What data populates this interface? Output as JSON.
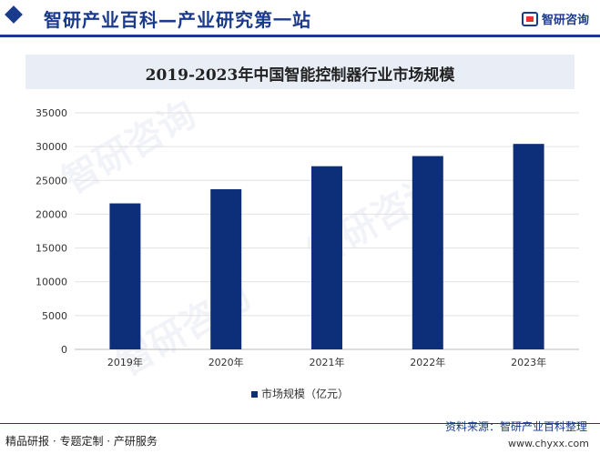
{
  "header": {
    "title": "智研产业百科—产业研究第一站",
    "brand": "智研咨询"
  },
  "chart_data": {
    "type": "bar",
    "title": "2019-2023年中国智能控制器行业市场规模",
    "categories": [
      "2019年",
      "2020年",
      "2021年",
      "2022年",
      "2023年"
    ],
    "series": [
      {
        "name": "市场规模（亿元）",
        "values": [
          21600,
          23700,
          27100,
          28600,
          30400
        ],
        "color": "#0d2f7a"
      }
    ],
    "yticks": [
      "0",
      "5000",
      "10000",
      "15000",
      "20000",
      "25000",
      "30000",
      "35000"
    ],
    "ylim": [
      0,
      35000
    ],
    "grid": true,
    "legend_position": "bottom"
  },
  "footer": {
    "left": "精品研报 · 专题定制 · 产研服务",
    "source": "资料来源：智研产业百科整理",
    "url": "www.chyxx.com"
  },
  "watermark": "智研咨询"
}
